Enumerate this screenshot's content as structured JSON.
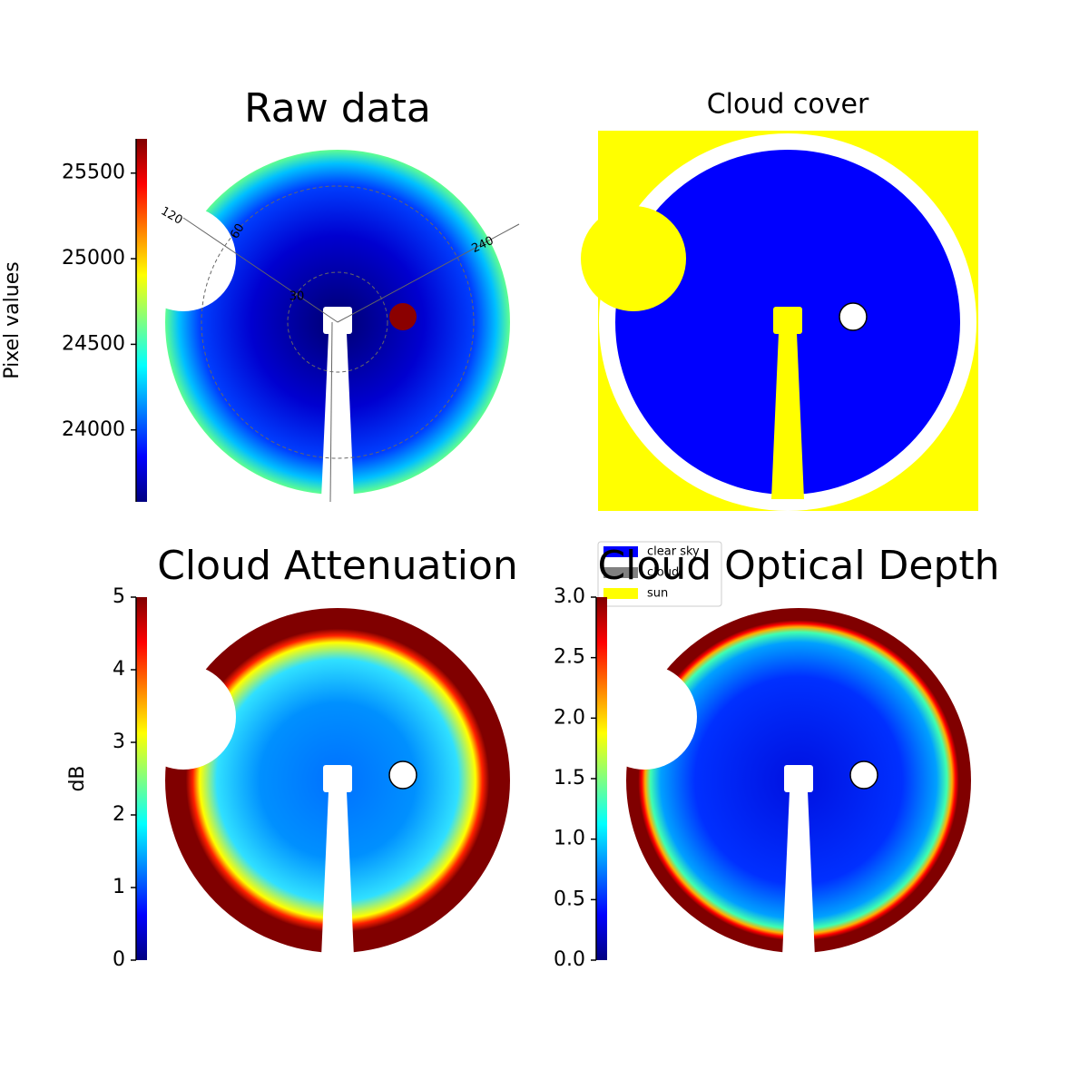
{
  "chart_data": [
    {
      "type": "image",
      "title": "Raw data",
      "colorbar": {
        "label": "Pixel values",
        "lim": [
          23580,
          25700
        ],
        "ticks": [
          24000,
          24500,
          25000,
          25500
        ],
        "colormap": [
          "#000080",
          "#0000ff",
          "#0080ff",
          "#00ffff",
          "#80ff80",
          "#ffff00",
          "#ff8000",
          "#ff0000",
          "#800000"
        ]
      },
      "polar_labels": [
        "120",
        "240",
        "60",
        "30"
      ]
    },
    {
      "type": "image",
      "title": "Cloud cover",
      "legend": [
        {
          "name": "clear sky",
          "color": "#0000ff"
        },
        {
          "name": "cloud",
          "color": "#808080"
        },
        {
          "name": "sun",
          "color": "#ffff00"
        }
      ]
    },
    {
      "type": "image",
      "title": "Cloud Attenuation",
      "colorbar": {
        "label": "dB",
        "lim": [
          0,
          5
        ],
        "ticks": [
          0,
          1,
          2,
          3,
          4,
          5
        ],
        "colormap": [
          "#000080",
          "#0000ff",
          "#0080ff",
          "#00ffff",
          "#80ff80",
          "#ffff00",
          "#ff8000",
          "#ff0000",
          "#800000"
        ]
      }
    },
    {
      "type": "image",
      "title": "Cloud Optical Depth",
      "colorbar": {
        "lim": [
          0,
          3
        ],
        "ticks": [
          {
            "value": 0,
            "label": "0.0"
          },
          0.5,
          {
            "value": 1,
            "label": "1.0"
          },
          1.5,
          {
            "value": 2,
            "label": "2.0"
          },
          2.5,
          {
            "value": 3,
            "label": "3.0"
          }
        ],
        "colormap": [
          "#000080",
          "#0000ff",
          "#0080ff",
          "#00ffff",
          "#80ff80",
          "#ffff00",
          "#ff8000",
          "#ff0000",
          "#800000"
        ]
      }
    }
  ]
}
